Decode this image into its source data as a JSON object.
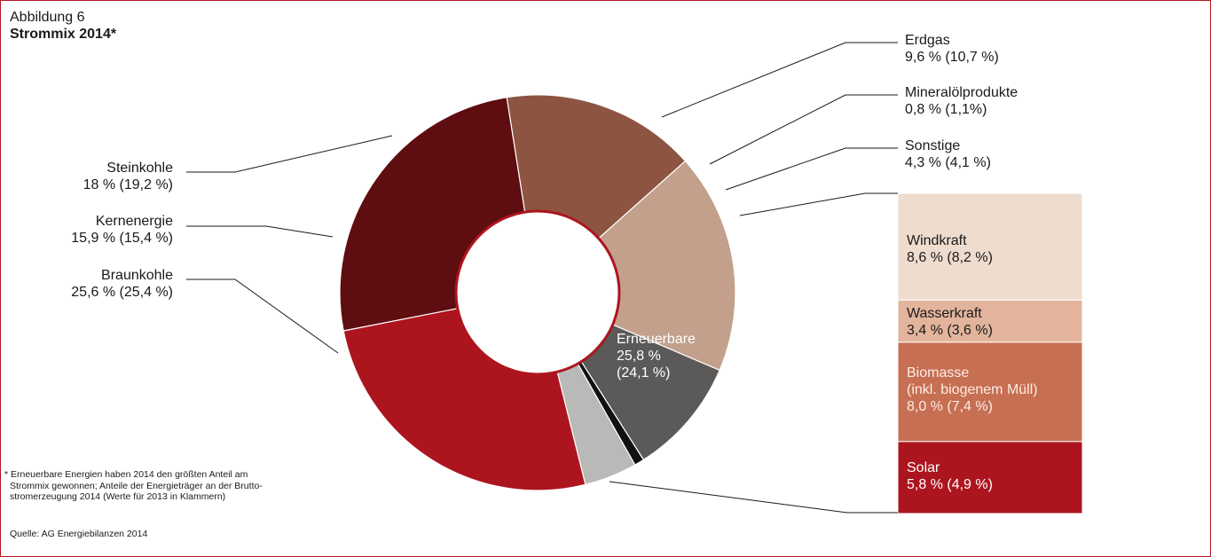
{
  "figure_label": "Abbildung 6",
  "chart_data": {
    "type": "pie",
    "title": "Strommix 2014*",
    "start_angle_deg": 76,
    "slices": [
      {
        "name": "Erneuerbare",
        "value": 25.8,
        "label_line2": "25,8 %",
        "label_line3": "(24,1 %)",
        "color": "#ad151e"
      },
      {
        "name": "Braunkohle",
        "value": 25.6,
        "value_text": "25,6 % (25,4 %)",
        "color": "#5e0d10"
      },
      {
        "name": "Kernenergie",
        "value": 15.9,
        "value_text": "15,9 % (15,4 %)",
        "color": "#8d5442"
      },
      {
        "name": "Steinkohle",
        "value": 18.0,
        "value_text": "18 % (19,2 %)",
        "color": "#c2a08c"
      },
      {
        "name": "Erdgas",
        "value": 9.6,
        "value_text": "9,6 % (10,7 %)",
        "color": "#5b5a58"
      },
      {
        "name": "Mineralölprodukte",
        "value": 0.8,
        "value_text": "0,8 % (1,1%)",
        "color": "#111111"
      },
      {
        "name": "Sonstige",
        "value": 4.3,
        "value_text": "4,3 % (4,1 %)",
        "color": "#b9b9b8"
      }
    ],
    "breakdown": {
      "of": "Erneuerbare",
      "items": [
        {
          "name": "Windkraft",
          "value": 8.6,
          "value_text": "8,6 % (8,2 %)",
          "color": "#eedccf",
          "text_color": "#1a1a1a"
        },
        {
          "name": "Wasserkraft",
          "value": 3.4,
          "value_text": "3,4 % (3,6 %)",
          "color": "#e2b49c",
          "text_color": "#1a1a1a"
        },
        {
          "name": "Biomasse",
          "name_line2": "(inkl. biogenem Müll)",
          "value": 8.0,
          "value_text": "8,0 % (7,4 %)",
          "color": "#c76f53",
          "text_color": "#fbece4"
        },
        {
          "name": "Solar",
          "value": 5.8,
          "value_text": "5,8 % (4,9 %)",
          "color": "#ad151e",
          "text_color": "#ffffff"
        }
      ]
    }
  },
  "footnote": [
    "* Erneuerbare Energien haben 2014 den größten Anteil am",
    "Strommix gewonnen; Anteile der Energieträger an der Brutto-",
    "stromerzeugung 2014 (Werte für 2013 in Klammern)"
  ],
  "source": "Quelle: AG Energiebilanzen 2014",
  "colors": {
    "frame": "#b01820",
    "hole_ring": "#ad151e",
    "leader": "#1a1a1a"
  }
}
